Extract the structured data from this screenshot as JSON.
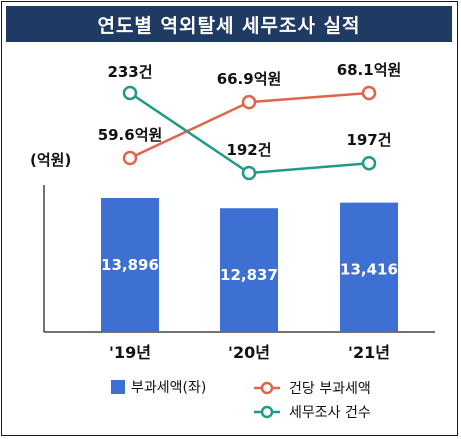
{
  "chart_data": {
    "type": "bar+line",
    "title": "연도별 역외탈세 세무조사 실적",
    "ylabel": "(억원)",
    "categories": [
      "'19년",
      "'20년",
      "'21년"
    ],
    "bars": {
      "name": "부과세액(좌)",
      "values": [
        13896,
        12837,
        13416
      ],
      "labels": [
        "13,896",
        "12,837",
        "13,416"
      ],
      "color": "#3e6fd3"
    },
    "lines": [
      {
        "name": "건당 부과세액",
        "values": [
          59.6,
          66.9,
          68.1
        ],
        "labels": [
          "59.6억원",
          "66.9억원",
          "68.1억원"
        ],
        "color": "#e0644a"
      },
      {
        "name": "세무조사 건수",
        "values": [
          233,
          192,
          197
        ],
        "labels": [
          "233건",
          "192건",
          "197건"
        ],
        "color": "#1f9a86"
      }
    ],
    "legend_position": "bottom"
  }
}
